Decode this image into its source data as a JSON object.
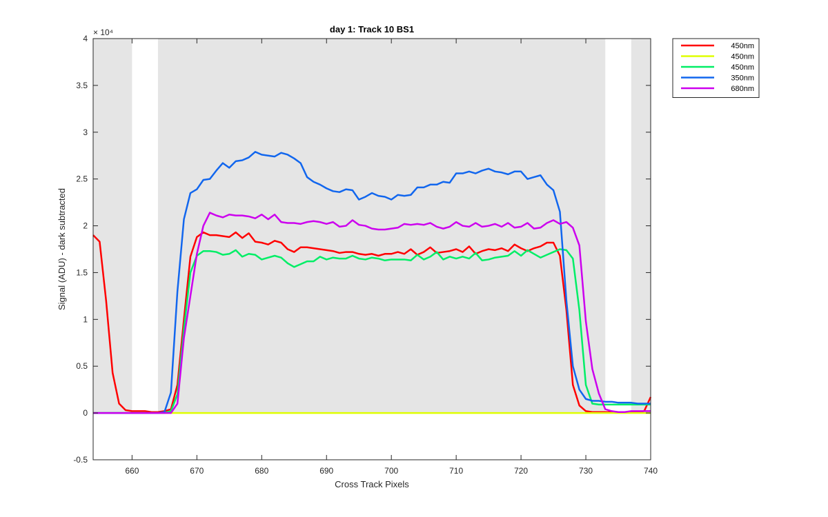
{
  "chart_data": {
    "type": "line",
    "title": "day 1: Track 10  BS1",
    "xlabel": "Cross Track Pixels",
    "ylabel": "Signal (ADU) - dark subtracted",
    "y_exponent_label": "× 10⁴",
    "xlim": [
      654,
      740
    ],
    "ylim": [
      -0.5,
      4
    ],
    "y_scale_factor": 10000,
    "x_ticks": [
      660,
      670,
      680,
      690,
      700,
      710,
      720,
      730,
      740
    ],
    "y_ticks": [
      -0.5,
      0,
      0.5,
      1,
      1.5,
      2,
      2.5,
      3,
      3.5,
      4
    ],
    "y_tick_labels": [
      "-0.5",
      "0",
      "0.5",
      "1",
      "1.5",
      "2",
      "2.5",
      "3",
      "3.5",
      "4"
    ],
    "grid": false,
    "legend_position": "outside-right-top",
    "shaded_regions": [
      {
        "x": [
          654,
          660
        ],
        "y": [
          0,
          4
        ]
      },
      {
        "x": [
          664,
          733
        ],
        "y": [
          0,
          4
        ]
      },
      {
        "x": [
          737,
          740
        ],
        "y": [
          0,
          4
        ]
      }
    ],
    "shade_color": "#e5e5e5",
    "x": [
      654,
      655,
      656,
      657,
      658,
      659,
      660,
      661,
      662,
      663,
      664,
      665,
      666,
      667,
      668,
      669,
      670,
      671,
      672,
      673,
      674,
      675,
      676,
      677,
      678,
      679,
      680,
      681,
      682,
      683,
      684,
      685,
      686,
      687,
      688,
      689,
      690,
      691,
      692,
      693,
      694,
      695,
      696,
      697,
      698,
      699,
      700,
      701,
      702,
      703,
      704,
      705,
      706,
      707,
      708,
      709,
      710,
      711,
      712,
      713,
      714,
      715,
      716,
      717,
      718,
      719,
      720,
      721,
      722,
      723,
      724,
      725,
      726,
      727,
      728,
      729,
      730,
      731,
      732,
      733,
      734,
      735,
      736,
      737,
      738,
      739,
      740
    ],
    "series": [
      {
        "name": "450nm",
        "color": "#ff0000",
        "values": [
          1.9,
          1.83,
          1.2,
          0.43,
          0.1,
          0.03,
          0.02,
          0.02,
          0.02,
          0.01,
          0.01,
          0.02,
          0.04,
          0.3,
          1.0,
          1.67,
          1.88,
          1.93,
          1.9,
          1.9,
          1.89,
          1.88,
          1.93,
          1.87,
          1.92,
          1.83,
          1.82,
          1.8,
          1.84,
          1.82,
          1.75,
          1.72,
          1.77,
          1.77,
          1.76,
          1.75,
          1.74,
          1.73,
          1.71,
          1.72,
          1.72,
          1.7,
          1.69,
          1.7,
          1.68,
          1.7,
          1.7,
          1.72,
          1.7,
          1.75,
          1.69,
          1.72,
          1.77,
          1.71,
          1.72,
          1.73,
          1.75,
          1.72,
          1.78,
          1.7,
          1.73,
          1.75,
          1.74,
          1.76,
          1.73,
          1.8,
          1.76,
          1.73,
          1.76,
          1.78,
          1.82,
          1.82,
          1.68,
          1.1,
          0.3,
          0.08,
          0.02,
          0.01,
          0.01,
          0.01,
          0.01,
          0.01,
          0.01,
          0.01,
          0.01,
          0.02,
          0.17
        ]
      },
      {
        "name": "450nm",
        "color": "#dfff00",
        "values": [
          0,
          0,
          0,
          0,
          0,
          0,
          0,
          0,
          0,
          0,
          0,
          0,
          0,
          0,
          0,
          0,
          0,
          0,
          0,
          0,
          0,
          0,
          0,
          0,
          0,
          0,
          0,
          0,
          0,
          0,
          0,
          0,
          0,
          0,
          0,
          0,
          0,
          0,
          0,
          0,
          0,
          0,
          0,
          0,
          0,
          0,
          0,
          0,
          0,
          0,
          0,
          0,
          0,
          0,
          0,
          0,
          0,
          0,
          0,
          0,
          0,
          0,
          0,
          0,
          0,
          0,
          0,
          0,
          0,
          0,
          0,
          0,
          0,
          0,
          0,
          0,
          0,
          0,
          0,
          0,
          0,
          0,
          0,
          0,
          0,
          0,
          0
        ]
      },
      {
        "name": "450nm",
        "color": "#00ee66",
        "values": [
          0,
          0,
          0,
          0,
          0,
          0,
          0,
          0,
          0,
          0,
          0,
          0,
          0.02,
          0.2,
          0.9,
          1.5,
          1.68,
          1.73,
          1.73,
          1.72,
          1.69,
          1.7,
          1.74,
          1.67,
          1.7,
          1.69,
          1.64,
          1.66,
          1.68,
          1.66,
          1.6,
          1.56,
          1.59,
          1.62,
          1.62,
          1.67,
          1.64,
          1.66,
          1.65,
          1.65,
          1.68,
          1.65,
          1.64,
          1.66,
          1.65,
          1.63,
          1.64,
          1.64,
          1.64,
          1.63,
          1.69,
          1.64,
          1.67,
          1.72,
          1.64,
          1.67,
          1.65,
          1.67,
          1.65,
          1.71,
          1.63,
          1.64,
          1.66,
          1.67,
          1.68,
          1.73,
          1.68,
          1.74,
          1.7,
          1.66,
          1.69,
          1.72,
          1.75,
          1.74,
          1.65,
          1.1,
          0.3,
          0.1,
          0.09,
          0.09,
          0.09,
          0.09,
          0.09,
          0.09,
          0.09,
          0.09,
          0.09
        ]
      },
      {
        "name": "350nm",
        "color": "#1166ee",
        "values": [
          0,
          0,
          0,
          0,
          0,
          0,
          0,
          0,
          0,
          0,
          0,
          0.01,
          0.22,
          1.3,
          2.07,
          2.35,
          2.39,
          2.49,
          2.5,
          2.59,
          2.67,
          2.62,
          2.69,
          2.7,
          2.73,
          2.79,
          2.76,
          2.75,
          2.74,
          2.78,
          2.76,
          2.72,
          2.67,
          2.52,
          2.47,
          2.44,
          2.4,
          2.37,
          2.36,
          2.39,
          2.38,
          2.28,
          2.31,
          2.35,
          2.32,
          2.31,
          2.28,
          2.33,
          2.32,
          2.33,
          2.41,
          2.41,
          2.44,
          2.44,
          2.47,
          2.46,
          2.56,
          2.56,
          2.58,
          2.56,
          2.59,
          2.61,
          2.58,
          2.57,
          2.55,
          2.58,
          2.58,
          2.5,
          2.52,
          2.54,
          2.44,
          2.38,
          2.15,
          1.2,
          0.5,
          0.25,
          0.15,
          0.13,
          0.13,
          0.12,
          0.12,
          0.11,
          0.11,
          0.11,
          0.1,
          0.1,
          0.1
        ]
      },
      {
        "name": "680nm",
        "color": "#cc00ee",
        "values": [
          0,
          0,
          0,
          0,
          0,
          0,
          0,
          0,
          0,
          0,
          0,
          0,
          0,
          0.1,
          0.8,
          1.25,
          1.7,
          2.0,
          2.14,
          2.11,
          2.09,
          2.12,
          2.11,
          2.11,
          2.1,
          2.08,
          2.12,
          2.07,
          2.12,
          2.04,
          2.03,
          2.03,
          2.02,
          2.04,
          2.05,
          2.04,
          2.02,
          2.04,
          1.99,
          2.0,
          2.06,
          2.01,
          2.0,
          1.97,
          1.96,
          1.96,
          1.97,
          1.98,
          2.02,
          2.01,
          2.02,
          2.01,
          2.03,
          1.99,
          1.97,
          1.99,
          2.04,
          2.0,
          1.99,
          2.03,
          1.99,
          2.0,
          2.02,
          1.99,
          2.03,
          1.98,
          1.99,
          2.03,
          1.97,
          1.98,
          2.03,
          2.06,
          2.02,
          2.04,
          1.98,
          1.79,
          0.98,
          0.47,
          0.21,
          0.04,
          0.02,
          0.01,
          0.01,
          0.02,
          0.02,
          0.02,
          0.02
        ]
      }
    ]
  }
}
